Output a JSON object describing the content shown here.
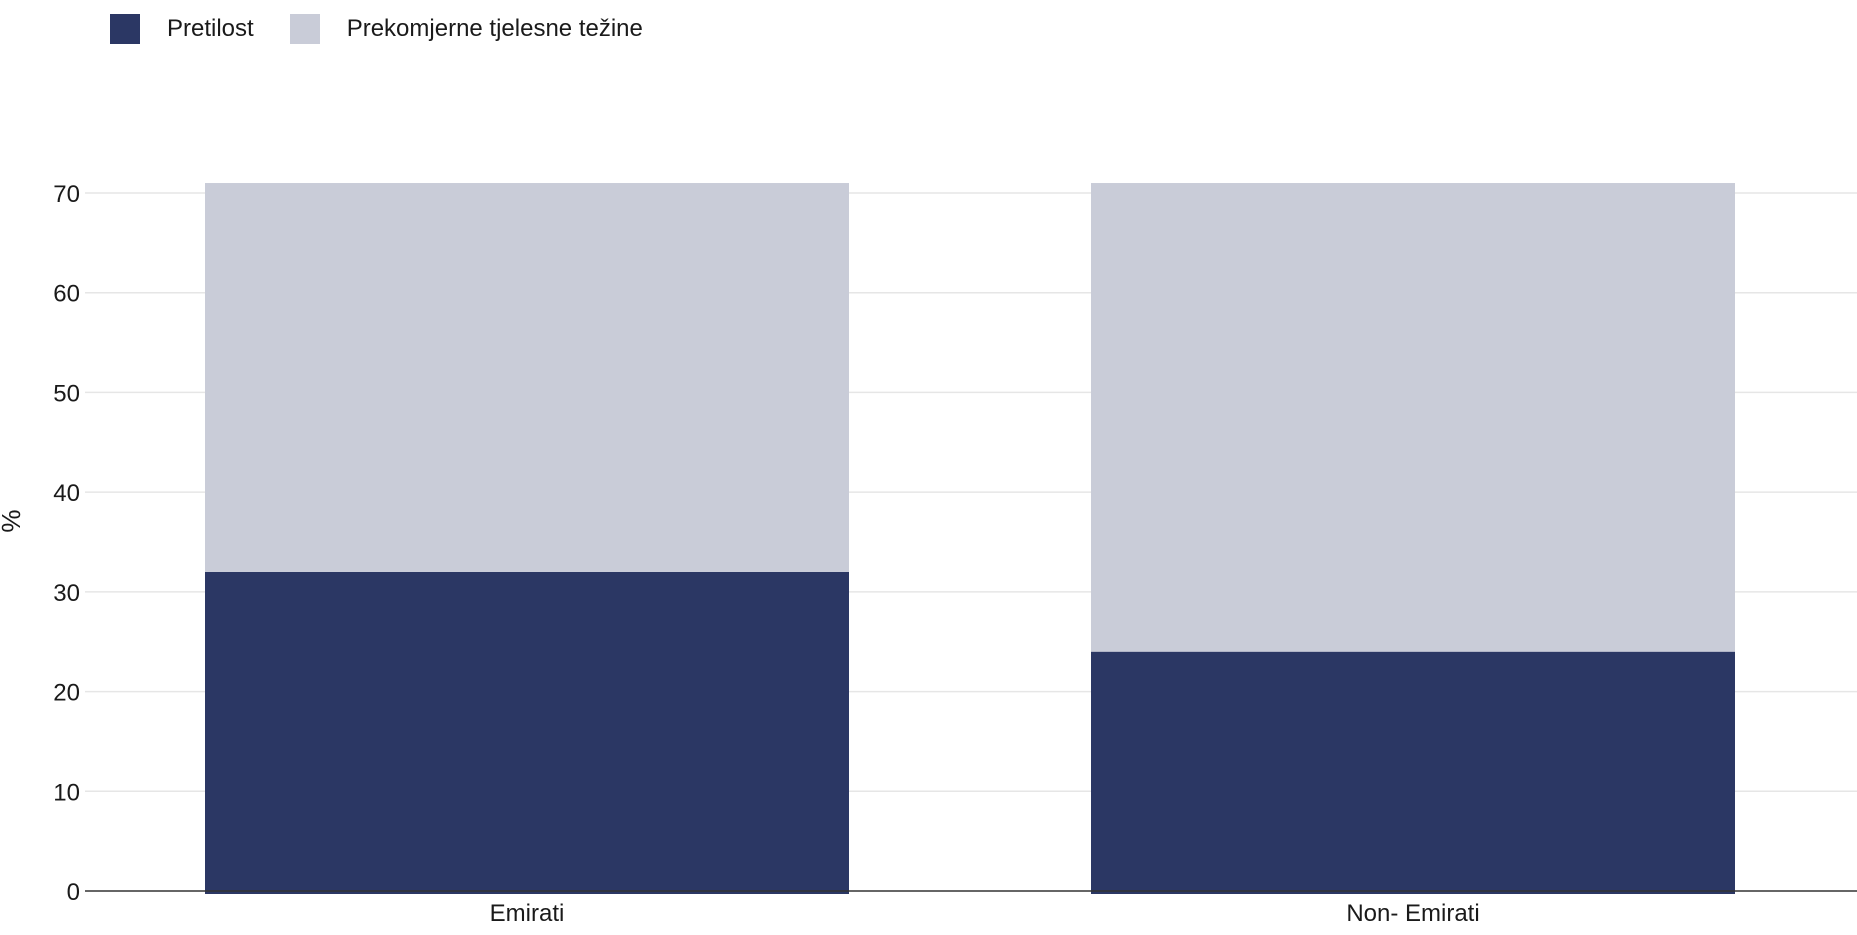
{
  "chart_data": {
    "type": "bar",
    "stacked": true,
    "categories": [
      "Emirati",
      "Non- Emirati"
    ],
    "series": [
      {
        "name": "Pretilost",
        "values": [
          32,
          24
        ],
        "color": "#2b3764"
      },
      {
        "name": "Prekomjerne tjelesne težine",
        "values": [
          39,
          47
        ],
        "color": "#c9ccd8"
      }
    ],
    "ylabel": "%",
    "xlabel": "",
    "ylim": [
      0,
      70
    ],
    "yticks": [
      "0",
      "10",
      "20",
      "30",
      "40",
      "50",
      "60",
      "70"
    ],
    "grid": true,
    "legend_position": "top-left"
  }
}
